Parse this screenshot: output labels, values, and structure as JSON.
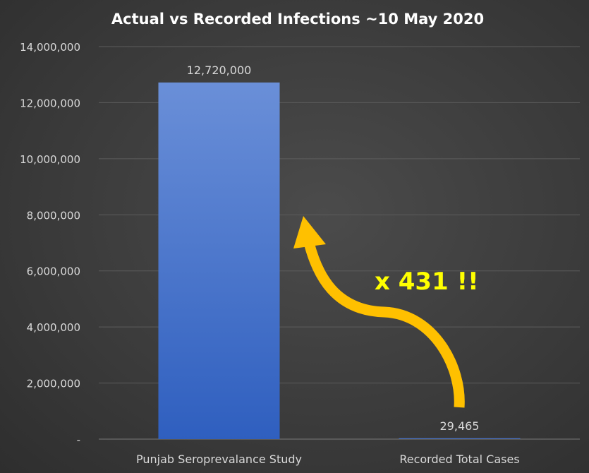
{
  "chart_data": {
    "type": "bar",
    "title": "Actual vs Recorded Infections ~10 May 2020",
    "xlabel": "",
    "ylabel": "",
    "categories": [
      "Punjab Seroprevalance Study",
      "Recorded Total Cases"
    ],
    "values": [
      12720000,
      29465
    ],
    "data_labels": [
      "12,720,000",
      "29,465"
    ],
    "ylim": [
      0,
      14000000
    ],
    "yticks": [
      0,
      2000000,
      4000000,
      6000000,
      8000000,
      10000000,
      12000000,
      14000000
    ],
    "ytick_labels": [
      "-",
      "2,000,000",
      "4,000,000",
      "6,000,000",
      "8,000,000",
      "10,000,000",
      "12,000,000",
      "14,000,000"
    ],
    "grid": true,
    "legend": "none",
    "annotation": {
      "text": "x 431 !!",
      "arrow": "from Recorded Total Cases up to Punjab Seroprevalance Study"
    },
    "colors": {
      "bar_top": "#6a8fd8",
      "bar_bottom": "#2f5fbf",
      "arrow": "#ffc000",
      "annotation": "#ffff00",
      "background": "#3a3a3a"
    }
  }
}
